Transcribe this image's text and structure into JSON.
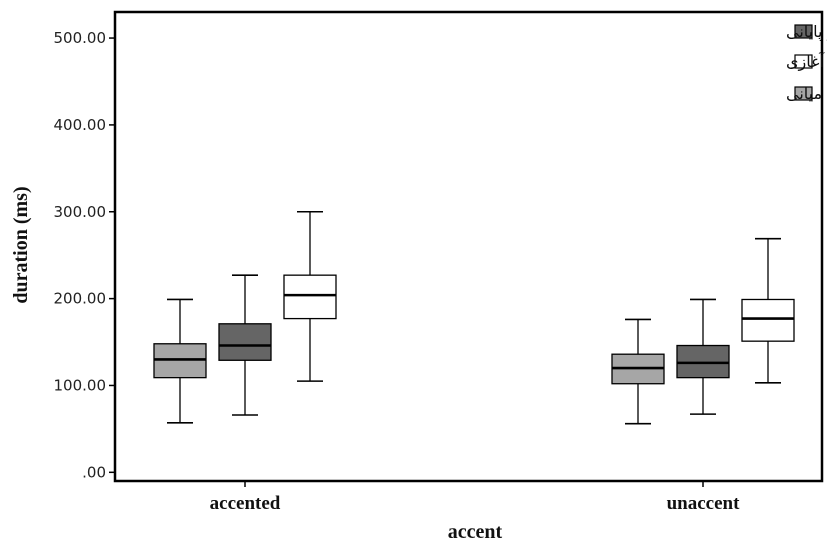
{
  "chart_data": {
    "type": "box",
    "xlabel": "accent",
    "ylabel": "duration (ms)",
    "ylim": [
      -10,
      530
    ],
    "yticks": [
      0,
      100,
      200,
      300,
      400,
      500
    ],
    "ytick_labels": [
      ".00",
      "100.00",
      "200.00",
      "300.00",
      "400.00",
      "500.00"
    ],
    "categories": [
      "accented",
      "unaccent"
    ],
    "legend_position": "top-right",
    "series": [
      {
        "name": "بدون تکیه میانی",
        "color": "#a6a6a6",
        "boxes": [
          {
            "min": 57,
            "q1": 109,
            "median": 130,
            "q3": 148,
            "max": 199
          },
          {
            "min": 56,
            "q1": 102,
            "median": 120,
            "q3": 136,
            "max": 176
          }
        ]
      },
      {
        "name": "تکیه‌بر پایانی",
        "color": "#656565",
        "boxes": [
          {
            "min": 66,
            "q1": 129,
            "median": 146,
            "q3": 171,
            "max": 227
          },
          {
            "min": 67,
            "q1": 109,
            "median": 126,
            "q3": 146,
            "max": 199
          }
        ]
      },
      {
        "name": "بدون تکیه آغازی",
        "color": "#ffffff",
        "boxes": [
          {
            "min": 105,
            "q1": 177,
            "median": 204,
            "q3": 227,
            "max": 300
          },
          {
            "min": 103,
            "q1": 151,
            "median": 177,
            "q3": 199,
            "max": 269
          }
        ]
      }
    ],
    "legend_order": [
      1,
      2,
      0
    ]
  }
}
